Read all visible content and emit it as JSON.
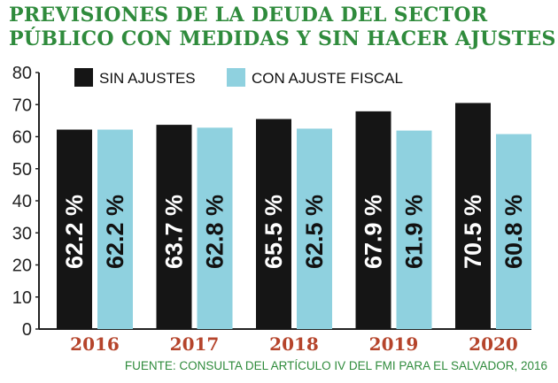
{
  "title_line1": "PREVISIONES DE LA DEUDA DEL SECTOR",
  "title_line2": "PÚBLICO CON MEDIDAS Y SIN HACER AJUSTES",
  "source": "FUENTE: CONSULTA DEL ARTÍCULO IV DEL FMI PARA EL SALVADOR, 2016",
  "colors": {
    "title": "#2f8b3c",
    "sin_ajustes": "#151515",
    "con_ajuste": "#8fd1df",
    "year_label": "#b5442b",
    "axis": "#222222"
  },
  "chart_data": {
    "type": "bar",
    "categories": [
      "2016",
      "2017",
      "2018",
      "2019",
      "2020"
    ],
    "series": [
      {
        "name": "SIN AJUSTES",
        "values": [
          62.2,
          63.7,
          65.5,
          67.9,
          70.5
        ],
        "labels": [
          "62.2 %",
          "63.7 %",
          "65.5 %",
          "67.9 %",
          "70.5 %"
        ],
        "color": "#151515"
      },
      {
        "name": "CON AJUSTE FISCAL",
        "values": [
          62.2,
          62.8,
          62.5,
          61.9,
          60.8
        ],
        "labels": [
          "62.2 %",
          "62.8 %",
          "62.5 %",
          "61.9 %",
          "60.8 %"
        ],
        "color": "#8fd1df"
      }
    ],
    "ylim": [
      0,
      80
    ],
    "yticks": [
      "0",
      "10",
      "20",
      "30",
      "40",
      "50",
      "60",
      "70",
      "80"
    ],
    "legend": "top-left",
    "grid": false
  }
}
